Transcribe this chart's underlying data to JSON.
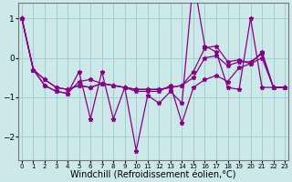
{
  "x": [
    0,
    1,
    2,
    3,
    4,
    5,
    6,
    7,
    8,
    9,
    10,
    11,
    12,
    13,
    14,
    15,
    16,
    17,
    18,
    19,
    20,
    21,
    22,
    23
  ],
  "line_jagged": [
    1.0,
    -0.3,
    -0.7,
    -0.85,
    -0.9,
    -0.6,
    -0.55,
    -0.65,
    -0.7,
    -0.75,
    -2.35,
    -0.95,
    -1.15,
    -0.85,
    -1.15,
    2.0,
    0.3,
    0.15,
    -0.75,
    -0.8,
    1.0,
    -0.75,
    -0.75,
    -0.75
  ],
  "line_wiggly": [
    1.0,
    -0.3,
    -0.7,
    -0.85,
    -0.9,
    -0.35,
    -1.55,
    -0.35,
    -1.55,
    -0.75,
    -0.85,
    -0.85,
    -0.85,
    -0.7,
    -1.65,
    -0.75,
    -0.55,
    -0.45,
    -0.6,
    -0.25,
    -0.15,
    0.0,
    -0.75,
    -0.75
  ],
  "line_smooth1": [
    1.0,
    -0.3,
    -0.55,
    -0.75,
    -0.8,
    -0.7,
    -0.75,
    -0.65,
    -0.7,
    -0.75,
    -0.8,
    -0.8,
    -0.8,
    -0.75,
    -0.7,
    -0.5,
    0.0,
    0.05,
    -0.2,
    -0.1,
    -0.1,
    0.1,
    -0.75,
    -0.75
  ],
  "line_smooth2": [
    1.0,
    -0.3,
    -0.55,
    -0.75,
    -0.8,
    -0.7,
    -0.75,
    -0.65,
    -0.7,
    -0.75,
    -0.8,
    -0.8,
    -0.8,
    -0.75,
    -0.7,
    -0.35,
    0.25,
    0.3,
    -0.1,
    -0.05,
    -0.15,
    0.15,
    -0.75,
    -0.75
  ],
  "bg_color": "#cce8e8",
  "line_color": "#880088",
  "marker": "*",
  "xlim": [
    0,
    23
  ],
  "ylim": [
    -2.6,
    1.4
  ],
  "yticks": [
    -2,
    -1,
    0,
    1
  ],
  "xtick_labels": [
    "0",
    "1",
    "2",
    "3",
    "4",
    "5",
    "6",
    "7",
    "8",
    "9",
    "10",
    "11",
    "12",
    "13",
    "14",
    "15",
    "16",
    "17",
    "18",
    "19",
    "20",
    "21",
    "22",
    "23"
  ],
  "xlabel": "Windchill (Refroidissement éolien,°C)",
  "xlabel_fontsize": 7.0,
  "grid_color": "#99cccc"
}
